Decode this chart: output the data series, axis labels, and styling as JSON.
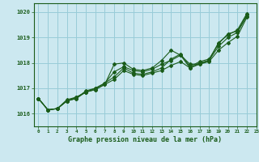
{
  "title": "Graphe pression niveau de la mer (hPa)",
  "background_color": "#cce8f0",
  "grid_color": "#99ccd8",
  "line_color": "#1a5c1a",
  "xlim": [
    -0.5,
    23
  ],
  "ylim": [
    1015.5,
    1020.35
  ],
  "yticks": [
    1016,
    1017,
    1018,
    1019,
    1020
  ],
  "xticks": [
    0,
    1,
    2,
    3,
    4,
    5,
    6,
    7,
    8,
    9,
    10,
    11,
    12,
    13,
    14,
    15,
    16,
    17,
    18,
    19,
    20,
    21,
    22,
    23
  ],
  "series": [
    [
      1016.6,
      1016.15,
      1016.2,
      1016.55,
      1016.65,
      1016.85,
      1016.95,
      1017.15,
      1017.95,
      1018.0,
      1017.75,
      1017.7,
      1017.8,
      1018.1,
      1018.5,
      1018.3,
      1017.95,
      1017.95,
      1018.1,
      1018.8,
      1019.1,
      1019.3,
      1019.95
    ],
    [
      1016.6,
      1016.15,
      1016.2,
      1016.5,
      1016.6,
      1016.9,
      1017.0,
      1017.2,
      1017.45,
      1017.8,
      1017.6,
      1017.55,
      1017.65,
      1017.8,
      1018.15,
      1018.35,
      1017.85,
      1018.05,
      1018.15,
      1018.75,
      1019.15,
      1019.25,
      1019.9
    ],
    [
      1016.6,
      1016.15,
      1016.2,
      1016.5,
      1016.6,
      1016.85,
      1016.95,
      1017.15,
      1017.35,
      1017.7,
      1017.55,
      1017.5,
      1017.6,
      1017.7,
      1017.9,
      1018.05,
      1017.8,
      1017.95,
      1018.05,
      1018.5,
      1018.8,
      1019.05,
      1019.8
    ],
    [
      1016.6,
      1016.15,
      1016.2,
      1016.5,
      1016.65,
      1016.85,
      1017.0,
      1017.2,
      1017.65,
      1017.85,
      1017.7,
      1017.65,
      1017.75,
      1017.95,
      1018.1,
      1018.3,
      1017.8,
      1018.0,
      1018.1,
      1018.65,
      1019.0,
      1019.2,
      1019.85
    ]
  ]
}
